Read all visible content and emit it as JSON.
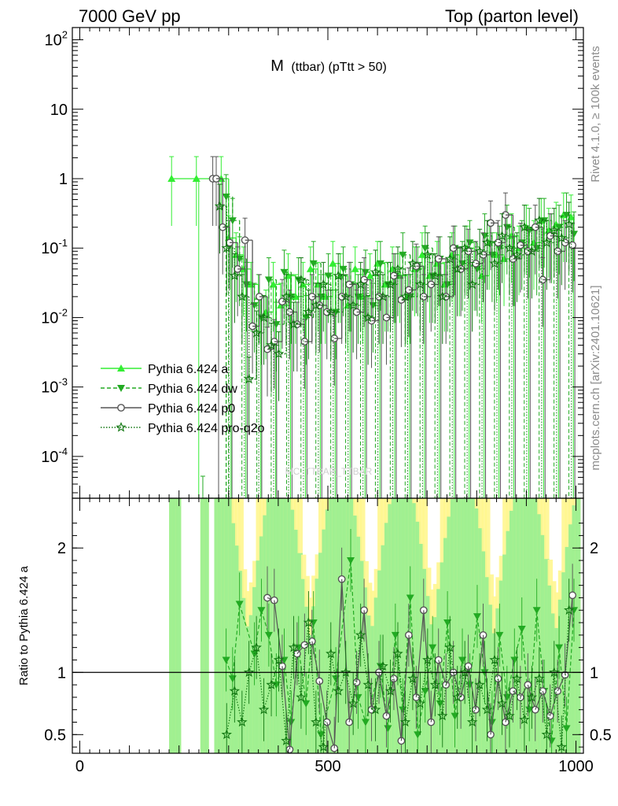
{
  "header": {
    "left": "7000 GeV pp",
    "right": "Top (parton level)"
  },
  "side_labels": {
    "rivet": "Rivet 4.1.0, ≥ 100k events",
    "mcplots": "mcplots.cern.ch [arXiv:2401.10621]"
  },
  "chart_data": [
    {
      "type": "line",
      "panel": "main",
      "title": "M",
      "subtitle": "(ttbar) (pTtt > 50)",
      "watermark": "MC_TTBAR_TTBAR",
      "xlabel": "",
      "ylabel": "",
      "yscale": "log",
      "xlim": [
        -15,
        1015
      ],
      "ylim": [
        2.5e-05,
        150
      ],
      "y_ticks": [
        0.0001,
        0.001,
        0.01,
        0.1,
        1,
        10,
        100
      ],
      "y_tick_labels": [
        [
          "10",
          "-4"
        ],
        [
          "10",
          "-3"
        ],
        [
          "10",
          "-2"
        ],
        [
          "10",
          "-1"
        ],
        [
          "1",
          ""
        ],
        [
          "10",
          ""
        ],
        [
          "10",
          "2"
        ]
      ],
      "legend_position": "middle-left",
      "series": [
        {
          "name": "Pythia 6.424 a",
          "color": "#33ee33",
          "marker": "triangle-up",
          "dash": "solid",
          "x": [
            185,
            235,
            285,
            300,
            315,
            330,
            345,
            360,
            375,
            390,
            405,
            420,
            435,
            450,
            465,
            480,
            495,
            510,
            525,
            540,
            555,
            570,
            585,
            600,
            615,
            630,
            645,
            660,
            675,
            690,
            705,
            720,
            735,
            750,
            765,
            780,
            795,
            810,
            825,
            840,
            855,
            870,
            885,
            900,
            915,
            930,
            945,
            960,
            975,
            990
          ],
          "y": [
            1.0,
            1.0,
            1.0,
            0.14,
            0.08,
            0.05,
            0.03,
            0.02,
            0.012,
            0.03,
            0.015,
            0.04,
            0.02,
            0.03,
            0.05,
            0.03,
            0.02,
            0.06,
            0.04,
            0.015,
            0.05,
            0.02,
            0.04,
            0.06,
            0.03,
            0.05,
            0.04,
            0.02,
            0.05,
            0.08,
            0.04,
            0.06,
            0.03,
            0.08,
            0.05,
            0.1,
            0.06,
            0.04,
            0.12,
            0.08,
            0.07,
            0.15,
            0.1,
            0.2,
            0.12,
            0.25,
            0.18,
            0.22,
            0.3,
            0.28
          ]
        },
        {
          "name": "Pythia 6.424 dw",
          "color": "#22aa22",
          "marker": "triangle-down",
          "dash": "dashed",
          "x": [
            248,
            295,
            308,
            322,
            336,
            352,
            366,
            381,
            396,
            412,
            426,
            441,
            456,
            471,
            486,
            501,
            516,
            531,
            546,
            561,
            576,
            591,
            606,
            621,
            636,
            651,
            666,
            681,
            696,
            711,
            726,
            741,
            756,
            771,
            786,
            801,
            816,
            831,
            846,
            861,
            876,
            891,
            906,
            921,
            936,
            951,
            966,
            981,
            996
          ],
          "y": [
            2.5e-05,
            0.55,
            0.25,
            0.07,
            0.03,
            0.015,
            0.01,
            0.035,
            0.008,
            0.045,
            0.02,
            0.035,
            0.01,
            0.06,
            0.02,
            0.04,
            0.012,
            0.05,
            0.03,
            0.02,
            0.045,
            0.015,
            0.06,
            0.03,
            0.04,
            0.08,
            0.02,
            0.05,
            0.1,
            0.04,
            0.07,
            0.03,
            0.1,
            0.06,
            0.12,
            0.05,
            0.15,
            0.08,
            0.1,
            0.2,
            0.07,
            0.12,
            0.18,
            0.1,
            0.25,
            0.15,
            0.2,
            0.3,
            0.16
          ]
        },
        {
          "name": "Pythia 6.424 p0",
          "color": "#555555",
          "marker": "circle-open",
          "dash": "solid",
          "x": [
            268,
            275,
            288,
            302,
            318,
            333,
            348,
            362,
            378,
            392,
            408,
            423,
            438,
            453,
            468,
            483,
            498,
            513,
            528,
            543,
            558,
            573,
            588,
            603,
            618,
            633,
            648,
            663,
            678,
            693,
            708,
            723,
            738,
            753,
            768,
            783,
            798,
            813,
            828,
            843,
            858,
            873,
            888,
            903,
            918,
            933,
            948,
            963,
            978,
            993
          ],
          "y": [
            1.0,
            1.0,
            0.2,
            0.12,
            0.05,
            0.13,
            0.0075,
            0.02,
            0.0035,
            0.0045,
            0.017,
            0.012,
            0.008,
            0.0045,
            0.02,
            0.015,
            0.012,
            0.005,
            0.02,
            0.03,
            0.012,
            0.035,
            0.009,
            0.02,
            0.01,
            0.04,
            0.018,
            0.025,
            0.055,
            0.02,
            0.03,
            0.07,
            0.02,
            0.1,
            0.05,
            0.09,
            0.06,
            0.08,
            0.23,
            0.12,
            0.3,
            0.07,
            0.11,
            0.09,
            0.2,
            0.035,
            0.15,
            0.09,
            0.12,
            0.11
          ]
        },
        {
          "name": "Pythia 6.424 pro-q2o",
          "color": "#117711",
          "marker": "star-open",
          "dash": "dotted",
          "x": [
            282,
            296,
            312,
            327,
            341,
            356,
            371,
            386,
            401,
            416,
            431,
            446,
            461,
            476,
            491,
            506,
            521,
            536,
            551,
            566,
            581,
            596,
            611,
            626,
            641,
            656,
            671,
            686,
            701,
            716,
            731,
            746,
            761,
            776,
            791,
            806,
            821,
            836,
            851,
            866,
            881,
            896,
            911,
            926,
            941,
            956,
            971,
            986
          ],
          "y": [
            0.4,
            0.1,
            0.04,
            0.02,
            0.0013,
            0.006,
            0.01,
            0.004,
            0.003,
            0.02,
            0.008,
            0.035,
            0.012,
            0.015,
            0.03,
            0.012,
            0.04,
            0.02,
            0.015,
            0.03,
            0.01,
            0.045,
            0.02,
            0.03,
            0.05,
            0.02,
            0.06,
            0.03,
            0.08,
            0.04,
            0.02,
            0.07,
            0.05,
            0.1,
            0.03,
            0.09,
            0.12,
            0.06,
            0.15,
            0.1,
            0.08,
            0.2,
            0.09,
            0.25,
            0.12,
            0.18,
            0.14,
            0.22
          ]
        }
      ]
    },
    {
      "type": "line",
      "panel": "ratio",
      "xlabel": "",
      "ylabel": "Ratio to Pythia 6.424 a",
      "xlim": [
        -15,
        1015
      ],
      "ylim": [
        0.35,
        2.4
      ],
      "x_ticks": [
        0,
        500,
        1000
      ],
      "y_ticks": [
        0.5,
        1,
        2
      ],
      "reference_line": 1,
      "series": [
        {
          "name": "Pythia 6.424 dw",
          "x": [
            295,
            308,
            322,
            352,
            366,
            381,
            396,
            412,
            426,
            441,
            456,
            471,
            486,
            516,
            546,
            561,
            576,
            606,
            621,
            636,
            651,
            666,
            681,
            696,
            711,
            726,
            741,
            756,
            771,
            786,
            801,
            816,
            831,
            846,
            861,
            876,
            891,
            906,
            921,
            936,
            951,
            966,
            981,
            996
          ],
          "y": [
            1.1,
            0.95,
            1.55,
            1.15,
            1.5,
            1.3,
            0.9,
            1.1,
            0.6,
            1.2,
            0.75,
            1.4,
            0.5,
            0.95,
            1.9,
            0.8,
            0.6,
            1.05,
            0.55,
            1.3,
            0.7,
            1.6,
            0.5,
            0.85,
            1.2,
            0.75,
            1.4,
            0.65,
            1.1,
            0.9,
            1.45,
            1.0,
            0.6,
            1.3,
            0.8,
            1.1,
            1.35,
            0.7,
            1.5,
            0.85,
            0.45,
            1.2,
            0.55,
            1.5
          ]
        },
        {
          "name": "Pythia 6.424 p0",
          "x": [
            378,
            392,
            408,
            423,
            438,
            453,
            468,
            483,
            498,
            513,
            528,
            543,
            558,
            573,
            588,
            603,
            618,
            633,
            648,
            663,
            678,
            693,
            708,
            723,
            738,
            753,
            768,
            783,
            798,
            813,
            828,
            843,
            858,
            873,
            888,
            903,
            918,
            933,
            948,
            963,
            978,
            993
          ],
          "y": [
            1.6,
            1.58,
            1.05,
            0.38,
            1.15,
            1.22,
            1.25,
            0.93,
            0.6,
            0.39,
            1.75,
            0.6,
            0.92,
            1.5,
            0.7,
            1.0,
            0.65,
            0.95,
            0.45,
            1.3,
            0.8,
            1.5,
            0.6,
            1.1,
            0.9,
            1.0,
            0.8,
            1.05,
            0.7,
            1.3,
            0.5,
            0.95,
            0.6,
            0.85,
            0.8,
            0.9,
            0.7,
            0.85,
            0.65,
            0.85,
            0.98,
            1.62
          ]
        },
        {
          "name": "Pythia 6.424 pro-q2o",
          "x": [
            296,
            312,
            327,
            341,
            356,
            371,
            386,
            401,
            416,
            431,
            446,
            461,
            476,
            491,
            506,
            521,
            536,
            551,
            566,
            581,
            596,
            611,
            626,
            641,
            656,
            671,
            686,
            701,
            716,
            731,
            746,
            761,
            776,
            791,
            806,
            821,
            836,
            851,
            866,
            881,
            896,
            911,
            926,
            941,
            956,
            971,
            986
          ],
          "y": [
            0.5,
            0.85,
            0.6,
            1.0,
            1.2,
            0.7,
            0.9,
            1.1,
            0.45,
            1.2,
            0.8,
            1.4,
            0.6,
            0.4,
            1.15,
            0.85,
            1.0,
            0.75,
            1.3,
            0.9,
            0.7,
            1.05,
            0.85,
            1.15,
            0.6,
            0.95,
            0.75,
            1.1,
            0.9,
            0.65,
            1.2,
            0.8,
            1.0,
            0.6,
            0.9,
            0.7,
            1.1,
            0.75,
            0.65,
            0.95,
            0.62,
            0.8,
            0.95,
            0.5,
            1.0,
            0.4,
            1.5
          ]
        }
      ]
    }
  ]
}
